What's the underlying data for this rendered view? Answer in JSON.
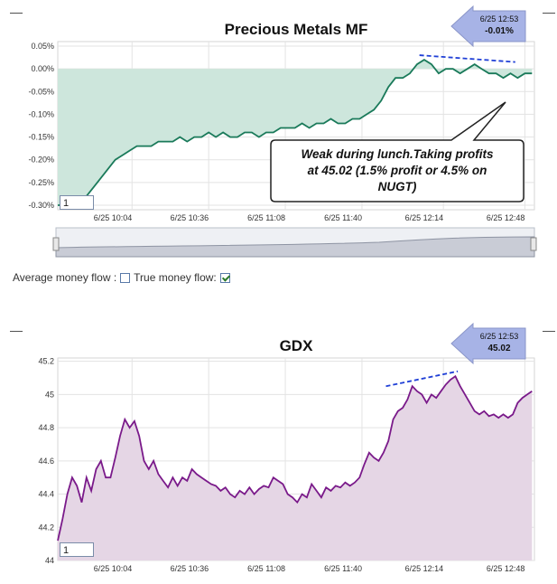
{
  "controls": {
    "avg_label": "Average money flow :",
    "true_label": "True money flow:",
    "avg_checked": false,
    "true_checked": true,
    "minimize_glyph": "—",
    "zoom_input_1": "1",
    "zoom_input_2": "1"
  },
  "colors": {
    "mf_line": "#1a7a5a",
    "mf_fill": "#cde6dc",
    "gdx_line": "#7a1a8a",
    "gdx_fill": "#e5d6e5",
    "trend": "#1f3fd6",
    "badge": "#a7b3e6"
  },
  "chart_data": [
    {
      "type": "line",
      "title": "Precious Metals MF",
      "ylim": [
        -0.31,
        0.06
      ],
      "yticks": [
        "0.05%",
        "0.00%",
        "-0.05%",
        "-0.10%",
        "-0.15%",
        "-0.20%",
        "-0.25%",
        "-0.30%"
      ],
      "ytick_values": [
        0.05,
        0.0,
        -0.05,
        -0.1,
        -0.15,
        -0.2,
        -0.25,
        -0.3
      ],
      "xticks": [
        "6/25 10:04",
        "6/25 10:36",
        "6/25 11:08",
        "6/25 11:40",
        "6/25 12:14",
        "6/25 12:48"
      ],
      "xtick_minutes": [
        604,
        636,
        668,
        700,
        734,
        768
      ],
      "xlim": [
        573,
        772
      ],
      "grid": true,
      "fill_baseline": 0.0,
      "series": [
        {
          "x": [
            573,
            576,
            579,
            582,
            585,
            588,
            591,
            594,
            597,
            600,
            603,
            606,
            609,
            612,
            615,
            618,
            621,
            624,
            627,
            630,
            633,
            636,
            639,
            642,
            645,
            648,
            651,
            654,
            657,
            660,
            663,
            666,
            669,
            672,
            675,
            678,
            681,
            684,
            687,
            690,
            693,
            696,
            699,
            702,
            705,
            708,
            711,
            714,
            717,
            720,
            723,
            726,
            729,
            732,
            735,
            738,
            741,
            744,
            747,
            750,
            753,
            756,
            759,
            762,
            765,
            768,
            771
          ],
          "values": [
            -0.3,
            -0.3,
            -0.29,
            -0.29,
            -0.28,
            -0.26,
            -0.24,
            -0.22,
            -0.2,
            -0.19,
            -0.18,
            -0.17,
            -0.17,
            -0.17,
            -0.16,
            -0.16,
            -0.16,
            -0.15,
            -0.16,
            -0.15,
            -0.15,
            -0.14,
            -0.15,
            -0.14,
            -0.15,
            -0.15,
            -0.14,
            -0.14,
            -0.15,
            -0.14,
            -0.14,
            -0.13,
            -0.13,
            -0.13,
            -0.12,
            -0.13,
            -0.12,
            -0.12,
            -0.11,
            -0.12,
            -0.12,
            -0.11,
            -0.11,
            -0.1,
            -0.09,
            -0.07,
            -0.04,
            -0.02,
            -0.02,
            -0.01,
            0.01,
            0.02,
            0.01,
            -0.01,
            0.0,
            0.0,
            -0.01,
            0.0,
            0.01,
            0.0,
            -0.01,
            -0.01,
            -0.02,
            -0.01,
            -0.02,
            -0.01,
            -0.01
          ]
        }
      ],
      "trendline": {
        "x": [
          724,
          764
        ],
        "values": [
          0.03,
          0.015
        ]
      },
      "badge": {
        "time": "6/25 12:53",
        "value": "-0.01%"
      },
      "annotation": "Weak during lunch.Taking profits at 45.02 (1.5% profit or 4.5% on NUGT)"
    },
    {
      "type": "line",
      "title": "GDX",
      "ylim": [
        44.0,
        45.22
      ],
      "yticks": [
        "45.2",
        "45",
        "44.8",
        "44.6",
        "44.4",
        "44.2",
        "44"
      ],
      "ytick_values": [
        45.2,
        45.0,
        44.8,
        44.6,
        44.4,
        44.2,
        44.0
      ],
      "xticks": [
        "6/25 10:04",
        "6/25 10:36",
        "6/25 11:08",
        "6/25 11:40",
        "6/25 12:14",
        "6/25 12:48"
      ],
      "xtick_minutes": [
        604,
        636,
        668,
        700,
        734,
        768
      ],
      "xlim": [
        573,
        772
      ],
      "grid": true,
      "fill_baseline": 44.0,
      "series": [
        {
          "x": [
            573,
            575,
            577,
            579,
            581,
            583,
            585,
            587,
            589,
            591,
            593,
            595,
            597,
            599,
            601,
            603,
            605,
            607,
            609,
            611,
            613,
            615,
            617,
            619,
            621,
            623,
            625,
            627,
            629,
            631,
            633,
            635,
            637,
            639,
            641,
            643,
            645,
            647,
            649,
            651,
            653,
            655,
            657,
            659,
            661,
            663,
            665,
            667,
            669,
            671,
            673,
            675,
            677,
            679,
            681,
            683,
            685,
            687,
            689,
            691,
            693,
            695,
            697,
            699,
            701,
            703,
            705,
            707,
            709,
            711,
            713,
            715,
            717,
            719,
            721,
            723,
            725,
            727,
            729,
            731,
            733,
            735,
            737,
            739,
            741,
            743,
            745,
            747,
            749,
            751,
            753,
            755,
            757,
            759,
            761,
            763,
            765,
            767,
            769,
            771
          ],
          "values": [
            44.12,
            44.25,
            44.4,
            44.5,
            44.45,
            44.35,
            44.5,
            44.42,
            44.55,
            44.6,
            44.5,
            44.5,
            44.62,
            44.75,
            44.85,
            44.8,
            44.84,
            44.75,
            44.6,
            44.55,
            44.6,
            44.52,
            44.48,
            44.44,
            44.5,
            44.45,
            44.5,
            44.48,
            44.55,
            44.52,
            44.5,
            44.48,
            44.46,
            44.45,
            44.42,
            44.44,
            44.4,
            44.38,
            44.42,
            44.4,
            44.44,
            44.4,
            44.43,
            44.45,
            44.44,
            44.5,
            44.48,
            44.46,
            44.4,
            44.38,
            44.35,
            44.4,
            44.38,
            44.46,
            44.42,
            44.38,
            44.44,
            44.42,
            44.45,
            44.44,
            44.47,
            44.45,
            44.47,
            44.5,
            44.58,
            44.65,
            44.62,
            44.6,
            44.65,
            44.72,
            44.85,
            44.9,
            44.92,
            44.97,
            45.05,
            45.02,
            45.0,
            44.95,
            45.0,
            44.98,
            45.02,
            45.06,
            45.09,
            45.11,
            45.05,
            45.0,
            44.95,
            44.9,
            44.88,
            44.9,
            44.87,
            44.88,
            44.86,
            44.88,
            44.86,
            44.88,
            44.95,
            44.98,
            45.0,
            45.02
          ]
        }
      ],
      "trendline": {
        "x": [
          710,
          740
        ],
        "values": [
          45.05,
          45.14
        ]
      },
      "badge": {
        "time": "6/25 12:53",
        "value": "45.02"
      }
    }
  ]
}
